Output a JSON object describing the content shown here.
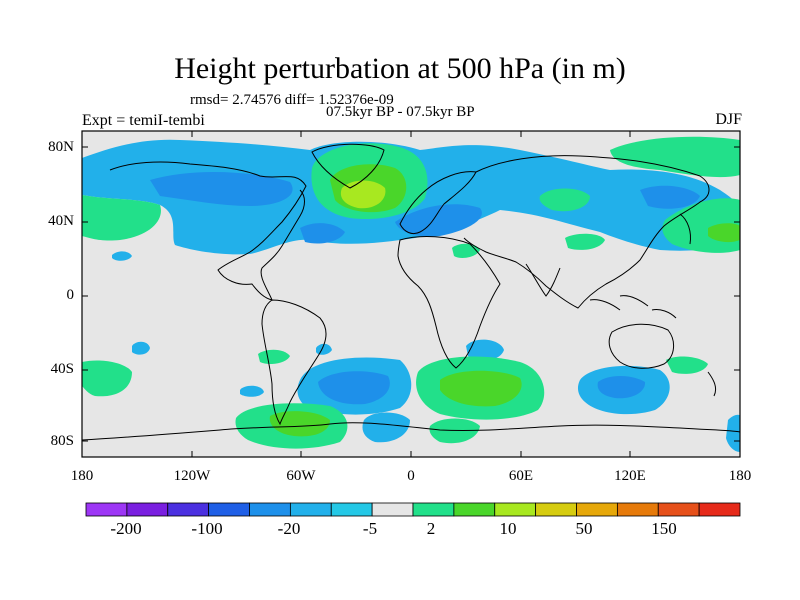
{
  "title": "Height perturbation at 500 hPa (in m)",
  "subtitle_stats": "rmsd= 2.74576  diff= 1.52376e-09",
  "subtitle_period": "07.5kyr BP - 07.5kyr BP",
  "left_label": "Expt = temiI-tembi",
  "right_label": "DJF",
  "map": {
    "lat_ticks": [
      "80N",
      "40N",
      "0",
      "40S",
      "80S"
    ],
    "lon_ticks": [
      "180",
      "120W",
      "60W",
      "0",
      "60E",
      "120E",
      "180"
    ]
  },
  "colorbar": {
    "colors": [
      "#9d36f5",
      "#7a1fe0",
      "#4b30e0",
      "#1f5fe6",
      "#1e90ea",
      "#22b0ea",
      "#24c8e6",
      "#e6e6e6",
      "#22e08a",
      "#4ad62a",
      "#a8e820",
      "#d6cc10",
      "#e6a80a",
      "#e67a0a",
      "#e6501a",
      "#e62a1a"
    ],
    "labels": [
      "-200",
      "-100",
      "-20",
      "-5",
      "2",
      "10",
      "50",
      "150"
    ]
  },
  "colors": {
    "background": "#e6e6e6",
    "neg_light": "#22b0ea",
    "neg_mid": "#1e90ea",
    "pos_light": "#22e08a",
    "pos_mid": "#4ad62a",
    "pos_high": "#a8e820"
  }
}
